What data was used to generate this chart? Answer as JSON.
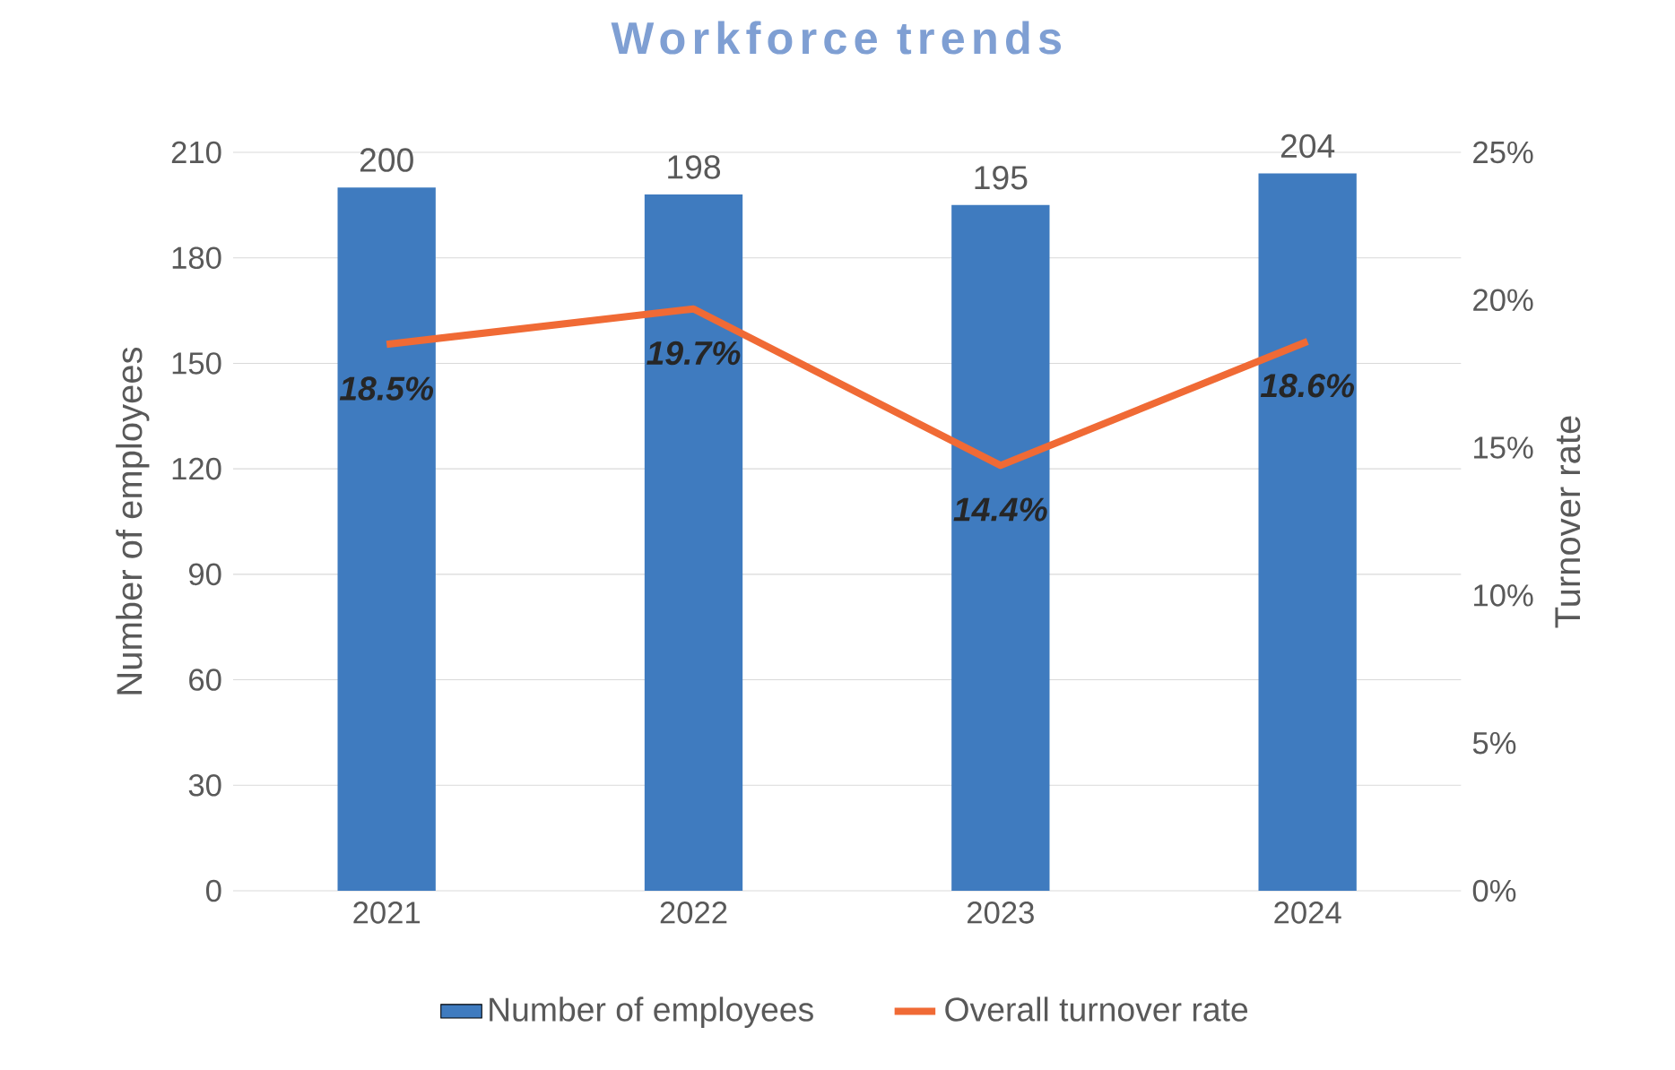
{
  "chart_data": {
    "type": "bar",
    "title": "Workforce trends",
    "categories": [
      "2021",
      "2022",
      "2023",
      "2024"
    ],
    "series": [
      {
        "name": "Number of employees",
        "color": "#3f7bbf",
        "values": [
          200,
          198,
          195,
          204
        ],
        "value_labels": [
          "200",
          "198",
          "195",
          "204"
        ]
      },
      {
        "name": "Overall turnover rate",
        "type": "line",
        "axis": "y2",
        "color": "#f06a35",
        "values": [
          18.5,
          19.7,
          14.4,
          18.6
        ],
        "value_labels": [
          "18.5%",
          "19.7%",
          "14.4%",
          "18.6%"
        ]
      }
    ],
    "ylabel": "Number of employees",
    "y2label": "Turnover rate",
    "ylim": [
      0,
      210
    ],
    "yticks": [
      0,
      30,
      60,
      90,
      120,
      150,
      180,
      210
    ],
    "y2lim": [
      0,
      25
    ],
    "y2ticks": [
      {
        "value": 0,
        "label": "0%"
      },
      {
        "value": 5,
        "label": "5%"
      },
      {
        "value": 10,
        "label": "10%"
      },
      {
        "value": 15,
        "label": "15%"
      },
      {
        "value": 20,
        "label": "20%"
      },
      {
        "value": 25,
        "label": "25%"
      }
    ],
    "grid": "y",
    "legend": "bottom",
    "marker": "none",
    "line_style": "solid"
  }
}
